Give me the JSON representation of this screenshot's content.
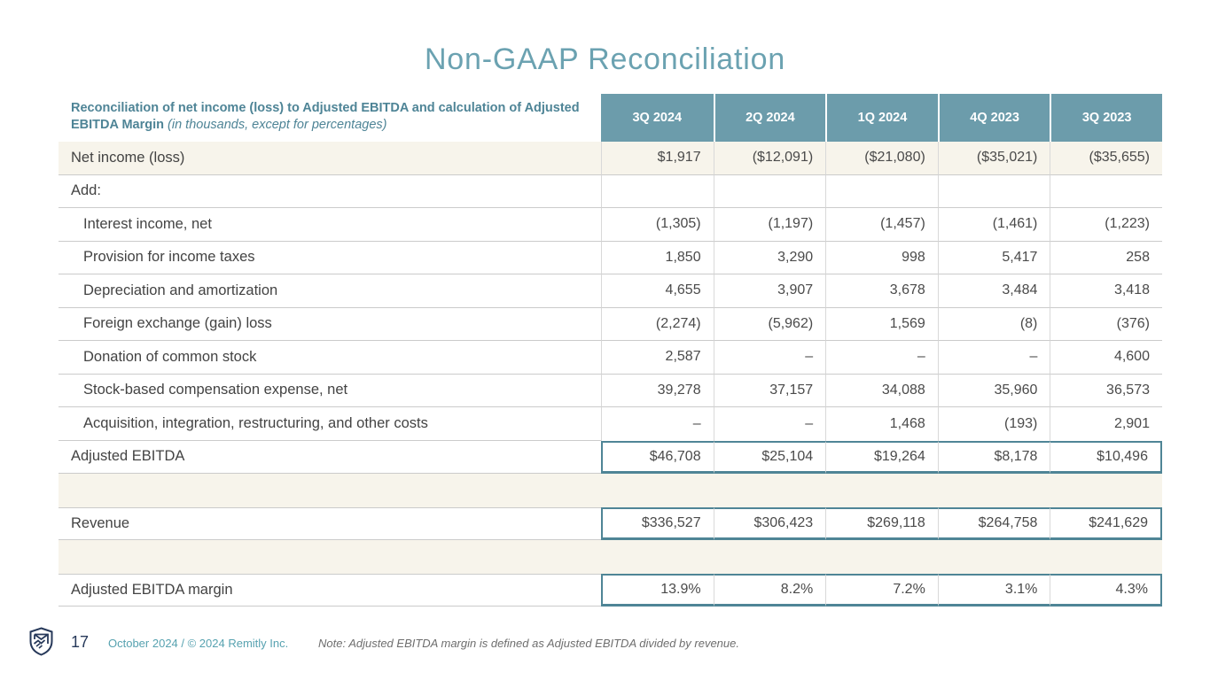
{
  "slide": {
    "title": "Non-GAAP Reconciliation"
  },
  "table": {
    "header_bold": "Reconciliation of net income (loss) to Adjusted EBITDA and calculation of Adjusted EBITDA Margin ",
    "header_italic": "(in thousands, except for percentages)",
    "columns": [
      "3Q 2024",
      "2Q 2024",
      "1Q 2024",
      "4Q 2023",
      "3Q 2023"
    ],
    "rows": [
      {
        "label": "Net income (loss)",
        "style": "beige",
        "values": [
          "$1,917",
          "($12,091)",
          "($21,080)",
          "($35,021)",
          "($35,655)"
        ]
      },
      {
        "label": "Add:",
        "style": "plain",
        "values": [
          "",
          "",
          "",
          "",
          ""
        ]
      },
      {
        "label": "Interest income, net",
        "style": "indent",
        "values": [
          "(1,305)",
          "(1,197)",
          "(1,457)",
          "(1,461)",
          "(1,223)"
        ]
      },
      {
        "label": "Provision for income taxes",
        "style": "indent",
        "values": [
          "1,850",
          "3,290",
          "998",
          "5,417",
          "258"
        ]
      },
      {
        "label": "Depreciation and amortization",
        "style": "indent",
        "values": [
          "4,655",
          "3,907",
          "3,678",
          "3,484",
          "3,418"
        ]
      },
      {
        "label": "Foreign exchange (gain) loss",
        "style": "indent",
        "values": [
          "(2,274)",
          "(5,962)",
          "1,569",
          "(8)",
          "(376)"
        ]
      },
      {
        "label": "Donation of common stock",
        "style": "indent",
        "values": [
          "2,587",
          "–",
          "–",
          "–",
          "4,600"
        ]
      },
      {
        "label": "Stock-based compensation expense, net",
        "style": "indent",
        "values": [
          "39,278",
          "37,157",
          "34,088",
          "35,960",
          "36,573"
        ]
      },
      {
        "label": "Acquisition, integration, restructuring, and other costs",
        "style": "indent",
        "values": [
          "–",
          "–",
          "1,468",
          "(193)",
          "2,901"
        ]
      },
      {
        "label": "Adjusted EBITDA",
        "style": "total",
        "values": [
          "$46,708",
          "$25,104",
          "$19,264",
          "$8,178",
          "$10,496"
        ]
      },
      {
        "label": "",
        "style": "spacer",
        "values": null
      },
      {
        "label": "Revenue",
        "style": "total",
        "values": [
          "$336,527",
          "$306,423",
          "$269,118",
          "$264,758",
          "$241,629"
        ]
      },
      {
        "label": "",
        "style": "spacer",
        "values": null
      },
      {
        "label": "Adjusted EBITDA margin",
        "style": "total",
        "values": [
          "13.9%",
          "8.2%",
          "7.2%",
          "3.1%",
          "4.3%"
        ]
      }
    ]
  },
  "footer": {
    "page_number": "17",
    "copyright": "October 2024 / © 2024 Remitly Inc.",
    "note": "Note: Adjusted EBITDA margin is defined as Adjusted EBITDA divided by revenue.",
    "logo_icon": "remitly-shield-handshake-logo"
  },
  "colors": {
    "accent_teal": "#6c9cab",
    "title_teal": "#6ba2b1",
    "header_text_teal": "#4e8496",
    "border_teal": "#4f8596",
    "row_beige": "#f7f4eb",
    "grid_gray": "#cbcbcb",
    "navy": "#27395a",
    "footer_teal": "#57a2b0",
    "note_gray": "#6e6e6e"
  }
}
